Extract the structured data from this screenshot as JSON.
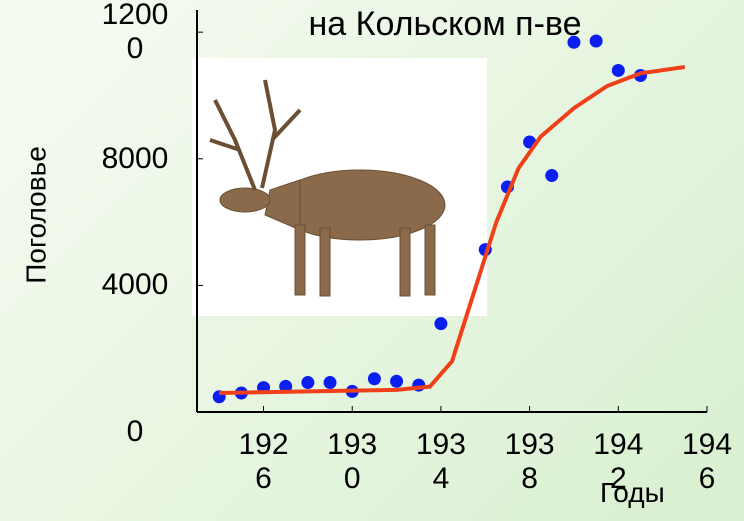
{
  "chart_data": {
    "type": "scatter",
    "title": "на Кольском п-ве",
    "y_label": "Поголовье",
    "x_label": "Годы",
    "xlim": [
      1923,
      1946
    ],
    "xticks": [
      1926,
      1930,
      1934,
      1938,
      1942,
      1946
    ],
    "ylim": [
      0,
      12700
    ],
    "yticks": [
      0,
      4000,
      8000,
      12000
    ],
    "series": [
      {
        "type": "scatter",
        "color": "#0a1ef0",
        "x": [
          1924,
          1925,
          1926,
          1927,
          1928,
          1929,
          1930,
          1931,
          1932,
          1933,
          1934,
          1936,
          1937,
          1938,
          1939,
          1940,
          1941,
          1942,
          1943
        ],
        "values": [
          480,
          600,
          770,
          810,
          930,
          930,
          650,
          1050,
          970,
          850,
          2790,
          5130,
          7110,
          8530,
          7470,
          11680,
          11720,
          10790,
          10630
        ]
      },
      {
        "type": "line",
        "color": "#f0401a",
        "x": [
          1924,
          1928,
          1932,
          1933.5,
          1934.5,
          1935.5,
          1936.5,
          1937.5,
          1938.5,
          1940,
          1941.5,
          1943,
          1945
        ],
        "values": [
          600,
          650,
          700,
          800,
          1600,
          3800,
          6000,
          7700,
          8700,
          9600,
          10300,
          10700,
          10900
        ]
      }
    ]
  }
}
